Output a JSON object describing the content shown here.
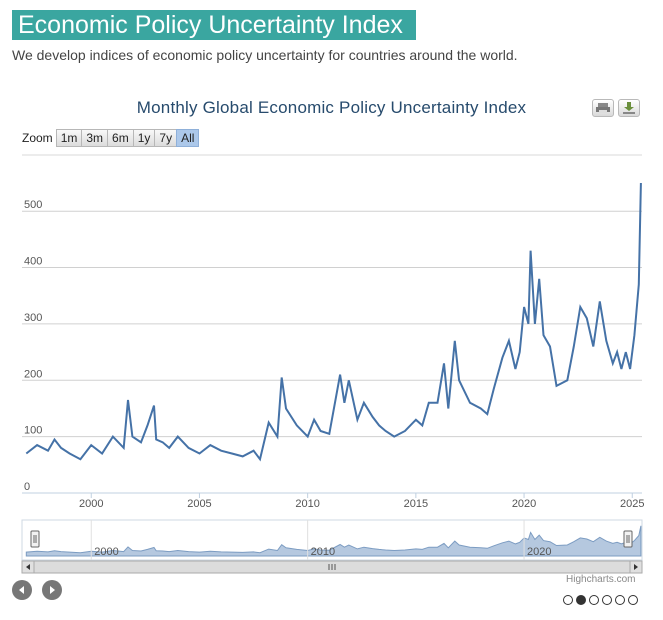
{
  "page": {
    "title": "Economic Policy Uncertainty Index",
    "subtitle": "We develop indices of economic policy uncertainty for countries around the world."
  },
  "toolbar": {
    "zoom_label": "Zoom",
    "ranges": [
      "1m",
      "3m",
      "6m",
      "1y",
      "7y",
      "All"
    ],
    "active_range": "All"
  },
  "icons": {
    "print": "printer-icon",
    "download": "download-icon",
    "prev": "arrow-left-icon",
    "next": "arrow-right-icon"
  },
  "credits": "Highcharts.com",
  "carousel": {
    "count": 6,
    "active_index": 1
  },
  "colors": {
    "title_bg": "#3aa6a0",
    "series_line": "#4572a7",
    "navigator_fill": "#b5c8df",
    "active_button": "#acc8ea"
  },
  "chart_data": {
    "type": "line",
    "title": "Monthly Global Economic Policy Uncertainty Index",
    "ylim": [
      0,
      550
    ],
    "yticks": [
      0,
      100,
      200,
      300,
      400,
      500
    ],
    "xticks": [
      2000,
      2005,
      2010,
      2015,
      2020,
      2025
    ],
    "grid": true,
    "navigator_labels": [
      "2000",
      "2010",
      "2020"
    ],
    "series": [
      {
        "x": [
          1997.0,
          1997.5,
          1998.0,
          1998.3,
          1998.6,
          1999.0,
          1999.5,
          2000.0,
          2000.5,
          2001.0,
          2001.5,
          2001.7,
          2001.9,
          2002.3,
          2002.6,
          2002.9,
          2003.0,
          2003.3,
          2003.6,
          2004.0,
          2004.5,
          2005.0,
          2005.5,
          2006.0,
          2006.5,
          2007.0,
          2007.5,
          2007.8,
          2008.2,
          2008.6,
          2008.8,
          2009.0,
          2009.5,
          2010.0,
          2010.3,
          2010.6,
          2011.0,
          2011.5,
          2011.7,
          2011.9,
          2012.3,
          2012.6,
          2013.0,
          2013.3,
          2013.6,
          2014.0,
          2014.5,
          2015.0,
          2015.3,
          2015.6,
          2016.0,
          2016.3,
          2016.5,
          2016.8,
          2017.0,
          2017.5,
          2018.0,
          2018.3,
          2018.6,
          2019.0,
          2019.3,
          2019.6,
          2019.8,
          2020.0,
          2020.2,
          2020.3,
          2020.5,
          2020.7,
          2020.9,
          2021.2,
          2021.5,
          2022.0,
          2022.3,
          2022.6,
          2022.9,
          2023.2,
          2023.5,
          2023.8,
          2024.1,
          2024.3,
          2024.5,
          2024.7,
          2024.9,
          2025.1,
          2025.3,
          2025.4
        ],
        "y": [
          70,
          85,
          75,
          95,
          80,
          70,
          60,
          85,
          70,
          100,
          80,
          165,
          100,
          90,
          120,
          155,
          95,
          90,
          80,
          100,
          80,
          70,
          85,
          75,
          70,
          65,
          75,
          60,
          125,
          100,
          205,
          150,
          120,
          100,
          130,
          110,
          105,
          210,
          160,
          200,
          130,
          160,
          135,
          120,
          110,
          100,
          110,
          130,
          120,
          160,
          160,
          230,
          150,
          270,
          200,
          160,
          150,
          140,
          185,
          240,
          270,
          220,
          250,
          330,
          300,
          430,
          300,
          380,
          280,
          260,
          190,
          200,
          260,
          330,
          310,
          260,
          340,
          270,
          230,
          250,
          220,
          250,
          220,
          280,
          370,
          550
        ]
      }
    ]
  }
}
